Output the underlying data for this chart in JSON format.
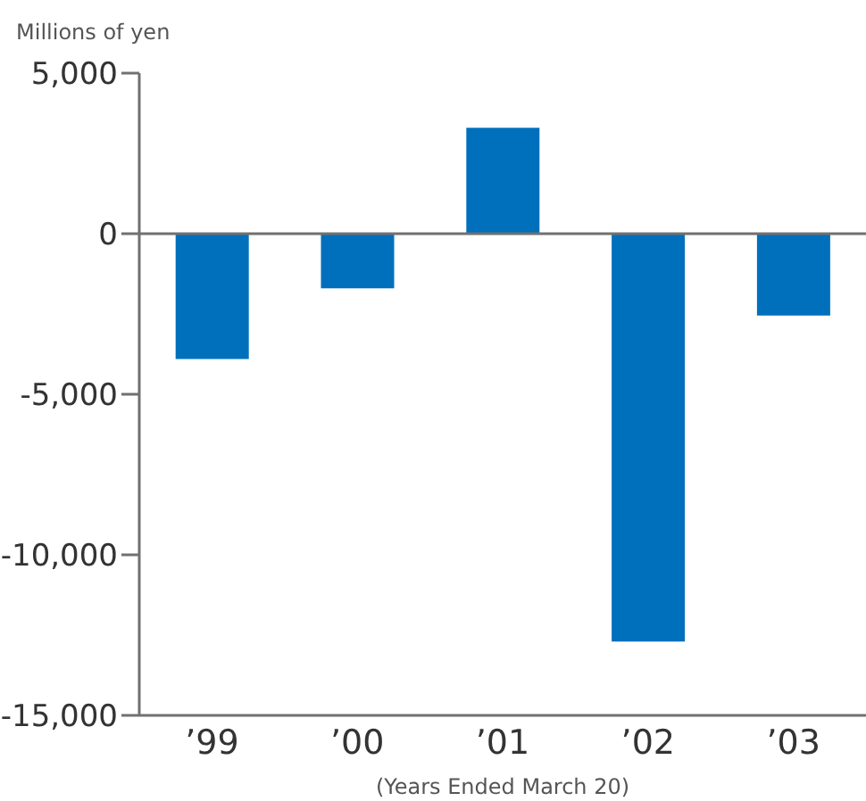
{
  "chart_data": {
    "type": "bar",
    "ylabel": "Millions of yen",
    "xlabel": "(Years Ended March 20)",
    "categories": [
      "’99",
      "’00",
      "’01",
      "’02",
      "’03"
    ],
    "values": [
      -3900,
      -1700,
      3300,
      -12700,
      -2550
    ],
    "color": "#0070bc",
    "ylim": [
      -15000,
      5000
    ],
    "yticks": [
      {
        "value": -15000,
        "label": "-15,000"
      },
      {
        "value": -10000,
        "label": "-10,000"
      },
      {
        "value": -5000,
        "label": "-5,000"
      },
      0,
      {
        "value": 5000,
        "label": "5,000"
      }
    ],
    "ref_lines": [
      {
        "axis": "y",
        "value": 0,
        "color": "#707070"
      }
    ],
    "grid": false,
    "legend": false
  }
}
